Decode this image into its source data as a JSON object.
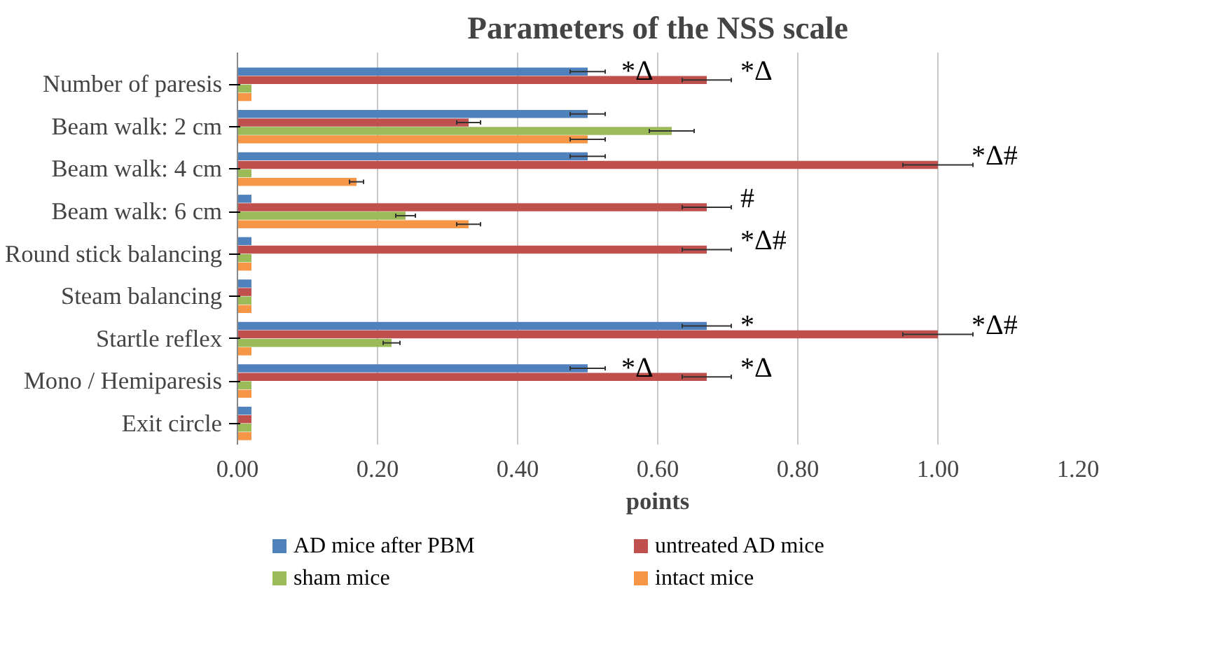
{
  "chart_data": {
    "type": "bar",
    "orientation": "horizontal",
    "title": "Parameters of the NSS scale",
    "xlabel": "points",
    "categories": [
      "Number of paresis",
      "Beam walk: 2 cm",
      "Beam walk: 4 cm",
      "Beam walk: 6 cm",
      "Round stick balancing",
      "Steam balancing",
      "Startle reflex",
      "Mono / Hemiparesis",
      "Exit circle"
    ],
    "series": [
      {
        "name": "AD mice after PBM",
        "color": "#4f81bd",
        "values": [
          0.5,
          0.5,
          0.5,
          0.02,
          0.02,
          0.02,
          0.67,
          0.5,
          0.02
        ],
        "errors": [
          0.025,
          0.025,
          0.025,
          null,
          null,
          null,
          0.035,
          0.025,
          null
        ]
      },
      {
        "name": "untreated AD mice",
        "color": "#c0504d",
        "values": [
          0.67,
          0.33,
          1.0,
          0.67,
          0.67,
          0.02,
          1.0,
          0.67,
          0.02
        ],
        "errors": [
          0.035,
          0.017,
          0.05,
          0.035,
          0.035,
          null,
          0.05,
          0.035,
          null
        ]
      },
      {
        "name": "sham mice",
        "color": "#9bbb59",
        "values": [
          0.02,
          0.62,
          0.02,
          0.24,
          0.02,
          0.02,
          0.22,
          0.02,
          0.02
        ],
        "errors": [
          null,
          0.032,
          null,
          0.014,
          null,
          null,
          0.012,
          null,
          null
        ]
      },
      {
        "name": "intact mice",
        "color": "#f79646",
        "values": [
          0.02,
          0.5,
          0.17,
          0.33,
          0.02,
          0.02,
          0.02,
          0.02,
          0.02
        ],
        "errors": [
          null,
          0.025,
          0.01,
          0.017,
          null,
          null,
          null,
          null,
          null
        ]
      }
    ],
    "xlim": [
      0,
      1.2
    ],
    "xticks": [
      {
        "value": 0,
        "label": "0.00"
      },
      {
        "value": 0.2,
        "label": "0.20"
      },
      {
        "value": 0.4,
        "label": "0.40"
      },
      {
        "value": 0.6,
        "label": "0.60"
      },
      {
        "value": 0.8,
        "label": "0.80"
      },
      {
        "value": 1.0,
        "label": "1.00"
      },
      {
        "value": 1.2,
        "label": "1.20"
      }
    ],
    "grid": "x",
    "legend": "bottom",
    "annotations": [
      {
        "text": "*Δ",
        "x": 0.5,
        "y": "Number of paresis"
      },
      {
        "text": "*Δ",
        "x": 0.67,
        "y": "Number of paresis"
      },
      {
        "text": "*Δ#",
        "x": 1.0,
        "y": "Beam walk: 4 cm"
      },
      {
        "text": "#",
        "x": 0.67,
        "y": "Beam walk: 6 cm"
      },
      {
        "text": "*Δ#",
        "x": 0.67,
        "y": "Round stick balancing"
      },
      {
        "text": "*",
        "x": 0.67,
        "y": "Startle reflex"
      },
      {
        "text": "*Δ#",
        "x": 1.0,
        "y": "Startle reflex"
      },
      {
        "text": "*Δ",
        "x": 0.5,
        "y": "Mono / Hemiparesis"
      },
      {
        "text": "*Δ",
        "x": 0.67,
        "y": "Mono / Hemiparesis"
      }
    ]
  }
}
